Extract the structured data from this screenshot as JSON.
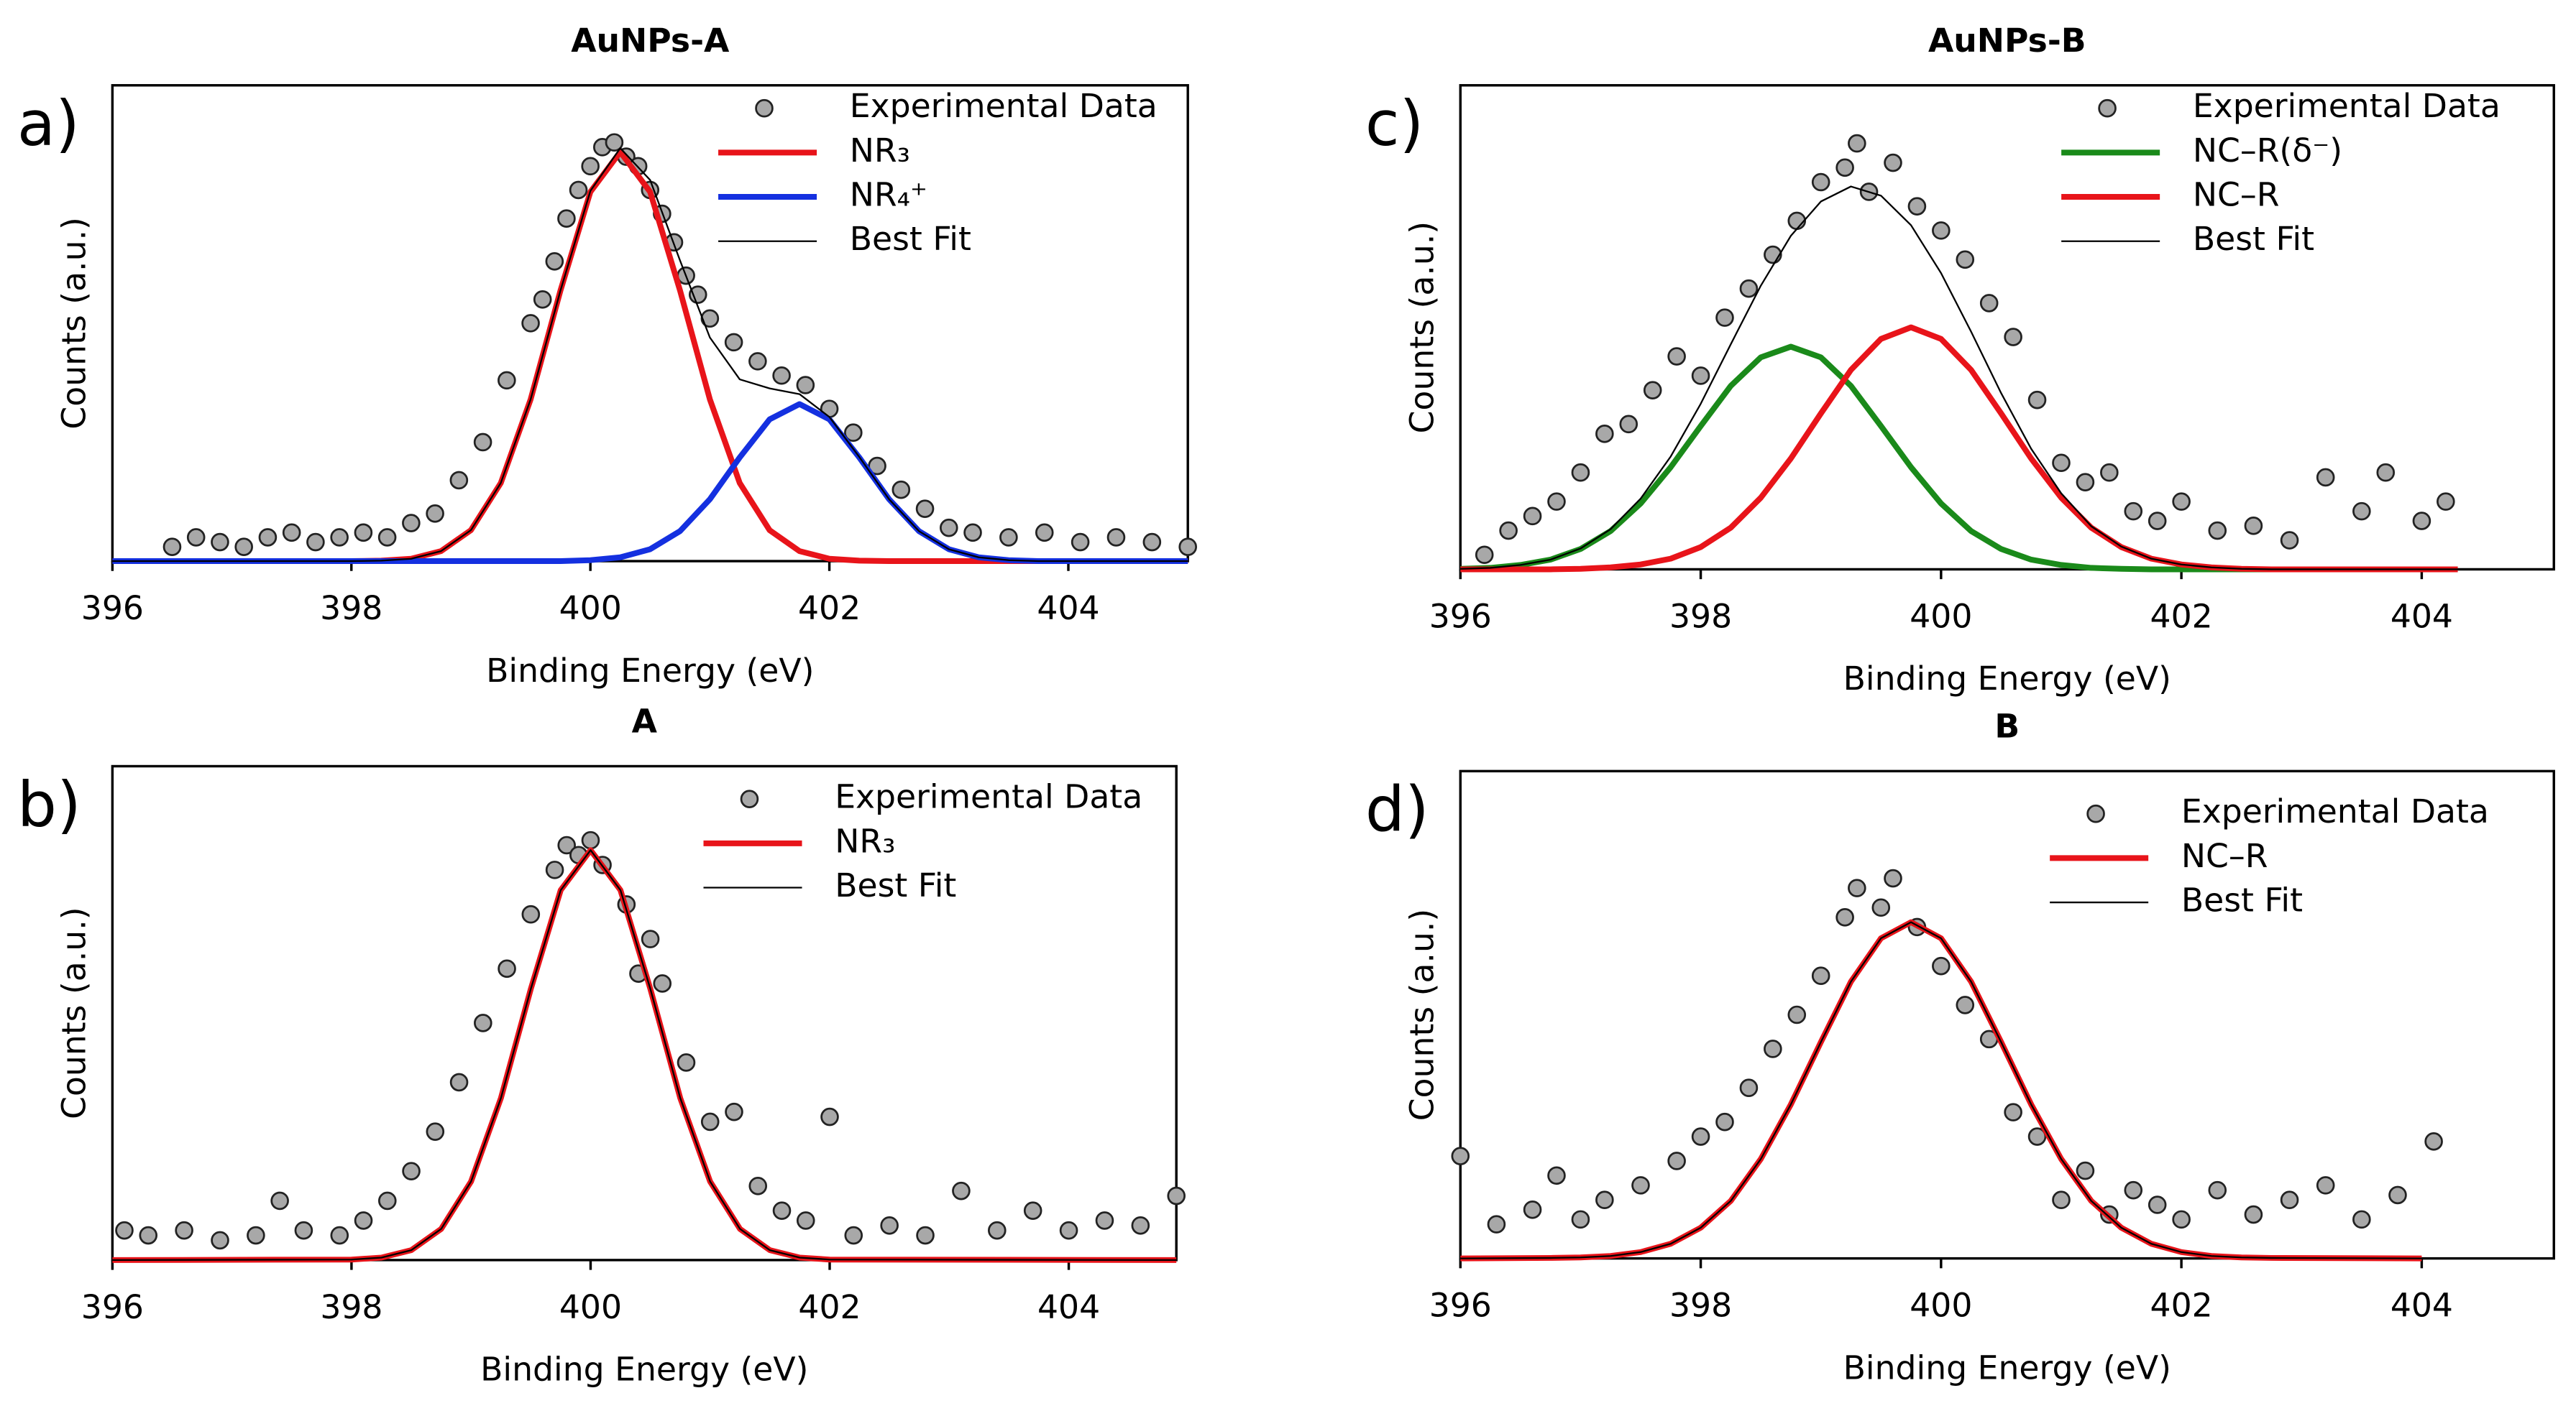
{
  "chart_data": [
    {
      "type": "line",
      "panel_label": "a)",
      "title": "AuNPs-A",
      "xlabel": "Binding Energy (eV)",
      "ylabel": "Counts (a.u.)",
      "xlim": [
        396,
        405
      ],
      "xticks": [
        396,
        398,
        400,
        402,
        404
      ],
      "ylim": [
        0,
        1
      ],
      "series": [
        {
          "name": "Experimental Data",
          "style": "markers",
          "color": "#a8a8a8",
          "x": [
            396.5,
            396.7,
            396.9,
            397.1,
            397.3,
            397.5,
            397.7,
            397.9,
            398.1,
            398.3,
            398.5,
            398.7,
            398.9,
            399.1,
            399.3,
            399.5,
            399.6,
            399.7,
            399.8,
            399.9,
            400.0,
            400.1,
            400.2,
            400.3,
            400.4,
            400.5,
            400.6,
            400.7,
            400.8,
            400.9,
            401.0,
            401.2,
            401.4,
            401.6,
            401.8,
            402.0,
            402.2,
            402.4,
            402.6,
            402.8,
            403.0,
            403.2,
            403.5,
            403.8,
            404.1,
            404.4,
            404.7,
            405.0
          ],
          "values": [
            0.03,
            0.05,
            0.04,
            0.03,
            0.05,
            0.06,
            0.04,
            0.05,
            0.06,
            0.05,
            0.08,
            0.1,
            0.17,
            0.25,
            0.38,
            0.5,
            0.55,
            0.63,
            0.72,
            0.78,
            0.83,
            0.87,
            0.88,
            0.85,
            0.83,
            0.78,
            0.73,
            0.67,
            0.6,
            0.56,
            0.51,
            0.46,
            0.42,
            0.39,
            0.37,
            0.32,
            0.27,
            0.2,
            0.15,
            0.11,
            0.07,
            0.06,
            0.05,
            0.06,
            0.04,
            0.05,
            0.04,
            0.03
          ]
        },
        {
          "name": "NR₃",
          "style": "line",
          "color": "#e8141a",
          "x": [
            396,
            398,
            398.25,
            398.5,
            398.75,
            399,
            399.25,
            399.5,
            399.75,
            400,
            400.25,
            400.5,
            400.75,
            401,
            401.25,
            401.5,
            401.75,
            402,
            402.25,
            402.5,
            402.75,
            403,
            403.25,
            403.5,
            403.75,
            404,
            405
          ],
          "values": [
            0,
            0,
            0.001,
            0.005,
            0.021,
            0.065,
            0.164,
            0.34,
            0.569,
            0.776,
            0.86,
            0.776,
            0.569,
            0.34,
            0.164,
            0.065,
            0.021,
            0.005,
            0.001,
            0,
            0,
            0,
            0,
            0,
            0,
            0,
            0
          ]
        },
        {
          "name": "NR₄⁺",
          "style": "line",
          "color": "#1430e0",
          "x": [
            396,
            398,
            398.25,
            398.5,
            398.75,
            399,
            399.25,
            399.5,
            399.75,
            400,
            400.25,
            400.5,
            400.75,
            401,
            401.25,
            401.5,
            401.75,
            402,
            402.25,
            402.5,
            402.75,
            403,
            403.25,
            403.5,
            403.75,
            404,
            405
          ],
          "values": [
            0,
            0,
            0,
            0,
            0,
            0,
            0,
            0,
            0,
            0.002,
            0.008,
            0.025,
            0.063,
            0.13,
            0.218,
            0.298,
            0.33,
            0.298,
            0.218,
            0.13,
            0.063,
            0.025,
            0.008,
            0.002,
            0,
            0,
            0
          ]
        },
        {
          "name": "Best Fit",
          "style": "line",
          "color": "#000000",
          "x": [
            396,
            398,
            398.25,
            398.5,
            398.75,
            399,
            399.25,
            399.5,
            399.75,
            400,
            400.25,
            400.5,
            400.75,
            401,
            401.25,
            401.5,
            401.75,
            402,
            402.25,
            402.5,
            402.75,
            403,
            403.25,
            403.5,
            403.75,
            404,
            405
          ],
          "values": [
            0,
            0,
            0.001,
            0.005,
            0.021,
            0.065,
            0.164,
            0.34,
            0.569,
            0.778,
            0.868,
            0.801,
            0.632,
            0.47,
            0.382,
            0.363,
            0.351,
            0.303,
            0.219,
            0.13,
            0.063,
            0.025,
            0.008,
            0.002,
            0,
            0,
            0
          ]
        }
      ]
    },
    {
      "type": "line",
      "panel_label": "b)",
      "title": "A",
      "xlabel": "Binding Energy (eV)",
      "ylabel": "Counts (a.u.)",
      "xlim": [
        396,
        404.9
      ],
      "xticks": [
        396,
        398,
        400,
        402,
        404
      ],
      "ylim": [
        0,
        1
      ],
      "series": [
        {
          "name": "Experimental Data",
          "style": "markers",
          "color": "#a8a8a8",
          "x": [
            396.1,
            396.3,
            396.6,
            396.9,
            397.2,
            397.4,
            397.6,
            397.9,
            398.1,
            398.3,
            398.5,
            398.7,
            398.9,
            399.1,
            399.3,
            399.5,
            399.7,
            399.8,
            399.9,
            400.0,
            400.1,
            400.3,
            400.4,
            400.5,
            400.6,
            400.8,
            401.0,
            401.2,
            401.4,
            401.6,
            401.8,
            402.0,
            402.2,
            402.5,
            402.8,
            403.1,
            403.4,
            403.7,
            404.0,
            404.3,
            404.6,
            404.9
          ],
          "values": [
            0.06,
            0.05,
            0.06,
            0.04,
            0.05,
            0.12,
            0.06,
            0.05,
            0.08,
            0.12,
            0.18,
            0.26,
            0.36,
            0.48,
            0.59,
            0.7,
            0.79,
            0.84,
            0.82,
            0.85,
            0.8,
            0.72,
            0.58,
            0.65,
            0.56,
            0.4,
            0.28,
            0.3,
            0.15,
            0.1,
            0.08,
            0.29,
            0.05,
            0.07,
            0.05,
            0.14,
            0.06,
            0.1,
            0.06,
            0.08,
            0.07,
            0.13
          ]
        },
        {
          "name": "NR₃",
          "style": "line",
          "color": "#e8141a",
          "x": [
            396,
            398,
            398.25,
            398.5,
            398.75,
            399,
            399.25,
            399.5,
            399.75,
            400,
            400.25,
            400.5,
            400.75,
            401,
            401.25,
            401.5,
            401.75,
            402,
            404.9
          ],
          "values": [
            0,
            0.001,
            0.005,
            0.02,
            0.063,
            0.159,
            0.328,
            0.549,
            0.749,
            0.83,
            0.749,
            0.549,
            0.328,
            0.159,
            0.063,
            0.02,
            0.005,
            0.001,
            0
          ]
        },
        {
          "name": "Best Fit",
          "style": "line",
          "color": "#000000",
          "x": [
            396,
            398,
            398.25,
            398.5,
            398.75,
            399,
            399.25,
            399.5,
            399.75,
            400,
            400.25,
            400.5,
            400.75,
            401,
            401.25,
            401.5,
            401.75,
            402,
            404.9
          ],
          "values": [
            0,
            0.001,
            0.005,
            0.02,
            0.063,
            0.159,
            0.328,
            0.549,
            0.749,
            0.83,
            0.749,
            0.549,
            0.328,
            0.159,
            0.063,
            0.02,
            0.005,
            0.001,
            0
          ]
        }
      ]
    },
    {
      "type": "line",
      "panel_label": "c)",
      "title": "AuNPs-B",
      "xlabel": "Binding Energy (eV)",
      "ylabel": "Counts (a.u.)",
      "xlim": [
        396,
        405.1
      ],
      "xticks": [
        396,
        398,
        400,
        402,
        404
      ],
      "ylim": [
        0,
        1
      ],
      "series": [
        {
          "name": "Experimental Data",
          "style": "markers",
          "color": "#a8a8a8",
          "x": [
            396.2,
            396.4,
            396.6,
            396.8,
            397.0,
            397.2,
            397.4,
            397.6,
            397.8,
            398.0,
            398.2,
            398.4,
            398.6,
            398.8,
            399.0,
            399.2,
            399.3,
            399.4,
            399.6,
            399.8,
            400.0,
            400.2,
            400.4,
            400.6,
            400.8,
            401.0,
            401.2,
            401.4,
            401.6,
            401.8,
            402.0,
            402.3,
            402.6,
            402.9,
            403.2,
            403.5,
            403.7,
            404.0,
            404.2
          ],
          "values": [
            0.03,
            0.08,
            0.11,
            0.14,
            0.2,
            0.28,
            0.3,
            0.37,
            0.44,
            0.4,
            0.52,
            0.58,
            0.65,
            0.72,
            0.8,
            0.83,
            0.88,
            0.78,
            0.84,
            0.75,
            0.7,
            0.64,
            0.55,
            0.48,
            0.35,
            0.22,
            0.18,
            0.2,
            0.12,
            0.1,
            0.14,
            0.08,
            0.09,
            0.06,
            0.19,
            0.12,
            0.2,
            0.1,
            0.14
          ]
        },
        {
          "name": "NC–R(δ⁻)",
          "style": "line",
          "color": "#1a8a1a",
          "x": [
            396,
            396.25,
            396.5,
            396.75,
            397,
            397.25,
            397.5,
            397.75,
            398,
            398.25,
            398.5,
            398.75,
            399,
            399.25,
            399.5,
            399.75,
            400,
            400.25,
            400.5,
            400.75,
            401,
            401.25,
            401.5,
            401.75,
            402,
            402.25,
            402.5,
            402.75,
            403,
            404.3
          ],
          "values": [
            0.001,
            0.003,
            0.009,
            0.02,
            0.042,
            0.079,
            0.136,
            0.211,
            0.296,
            0.379,
            0.438,
            0.46,
            0.438,
            0.379,
            0.296,
            0.211,
            0.136,
            0.079,
            0.042,
            0.02,
            0.009,
            0.003,
            0.001,
            0,
            0,
            0,
            0,
            0,
            0,
            0
          ]
        },
        {
          "name": "NC–R",
          "style": "line",
          "color": "#e8141a",
          "x": [
            396,
            396.25,
            396.5,
            396.75,
            397,
            397.25,
            397.5,
            397.75,
            398,
            398.25,
            398.5,
            398.75,
            399,
            399.25,
            399.5,
            399.75,
            400,
            400.25,
            400.5,
            400.75,
            401,
            401.25,
            401.5,
            401.75,
            402,
            402.25,
            402.5,
            402.75,
            403,
            404.3
          ],
          "values": [
            0,
            0,
            0,
            0,
            0.001,
            0.004,
            0.01,
            0.022,
            0.046,
            0.086,
            0.148,
            0.229,
            0.322,
            0.412,
            0.476,
            0.5,
            0.476,
            0.412,
            0.322,
            0.229,
            0.148,
            0.086,
            0.046,
            0.022,
            0.01,
            0.004,
            0.001,
            0,
            0,
            0
          ]
        },
        {
          "name": "Best Fit",
          "style": "line",
          "color": "#000000",
          "x": [
            396,
            396.25,
            396.5,
            396.75,
            397,
            397.25,
            397.5,
            397.75,
            398,
            398.25,
            398.5,
            398.75,
            399,
            399.25,
            399.5,
            399.75,
            400,
            400.25,
            400.5,
            400.75,
            401,
            401.25,
            401.5,
            401.75,
            402,
            402.25,
            402.5,
            402.75,
            403,
            404.3
          ],
          "values": [
            0.001,
            0.003,
            0.009,
            0.02,
            0.043,
            0.083,
            0.146,
            0.233,
            0.342,
            0.465,
            0.586,
            0.689,
            0.76,
            0.791,
            0.772,
            0.711,
            0.612,
            0.491,
            0.364,
            0.249,
            0.157,
            0.089,
            0.047,
            0.022,
            0.01,
            0.004,
            0.001,
            0,
            0,
            0
          ]
        }
      ]
    },
    {
      "type": "line",
      "panel_label": "d)",
      "title": "B",
      "xlabel": "Binding Energy (eV)",
      "ylabel": "Counts (a.u.)",
      "xlim": [
        396,
        405.1
      ],
      "xticks": [
        396,
        398,
        400,
        402,
        404
      ],
      "ylim": [
        0,
        1
      ],
      "series": [
        {
          "name": "Experimental Data",
          "style": "markers",
          "color": "#a8a8a8",
          "x": [
            396.0,
            396.3,
            396.6,
            396.8,
            397.0,
            397.2,
            397.5,
            397.8,
            398.0,
            398.2,
            398.4,
            398.6,
            398.8,
            399.0,
            399.2,
            399.3,
            399.5,
            399.6,
            399.8,
            400.0,
            400.2,
            400.4,
            400.6,
            400.8,
            401.0,
            401.2,
            401.4,
            401.6,
            401.8,
            402.0,
            402.3,
            402.6,
            402.9,
            403.2,
            403.5,
            403.8,
            404.1
          ],
          "values": [
            0.21,
            0.07,
            0.1,
            0.17,
            0.08,
            0.12,
            0.15,
            0.2,
            0.25,
            0.28,
            0.35,
            0.43,
            0.5,
            0.58,
            0.7,
            0.76,
            0.72,
            0.78,
            0.68,
            0.6,
            0.52,
            0.45,
            0.3,
            0.25,
            0.12,
            0.18,
            0.09,
            0.14,
            0.11,
            0.08,
            0.14,
            0.09,
            0.12,
            0.15,
            0.08,
            0.13,
            0.24
          ]
        },
        {
          "name": "NC–R",
          "style": "line",
          "color": "#e8141a",
          "x": [
            396,
            396.75,
            397,
            397.25,
            397.5,
            397.75,
            398,
            398.25,
            398.5,
            398.75,
            399,
            399.25,
            399.5,
            399.75,
            400,
            400.25,
            400.5,
            400.75,
            401,
            401.25,
            401.5,
            401.75,
            402,
            402.25,
            402.5,
            402.75,
            404
          ],
          "values": [
            0,
            0.001,
            0.002,
            0.005,
            0.013,
            0.03,
            0.063,
            0.118,
            0.204,
            0.316,
            0.444,
            0.568,
            0.657,
            0.69,
            0.657,
            0.568,
            0.444,
            0.316,
            0.204,
            0.118,
            0.063,
            0.03,
            0.013,
            0.005,
            0.002,
            0.001,
            0
          ]
        },
        {
          "name": "Best Fit",
          "style": "line",
          "color": "#000000",
          "x": [
            396,
            396.75,
            397,
            397.25,
            397.5,
            397.75,
            398,
            398.25,
            398.5,
            398.75,
            399,
            399.25,
            399.5,
            399.75,
            400,
            400.25,
            400.5,
            400.75,
            401,
            401.25,
            401.5,
            401.75,
            402,
            402.25,
            402.5,
            402.75,
            404
          ],
          "values": [
            0,
            0.001,
            0.002,
            0.005,
            0.013,
            0.03,
            0.063,
            0.118,
            0.204,
            0.316,
            0.444,
            0.568,
            0.657,
            0.69,
            0.657,
            0.568,
            0.444,
            0.316,
            0.204,
            0.118,
            0.063,
            0.03,
            0.013,
            0.005,
            0.002,
            0.001,
            0
          ]
        }
      ]
    }
  ]
}
